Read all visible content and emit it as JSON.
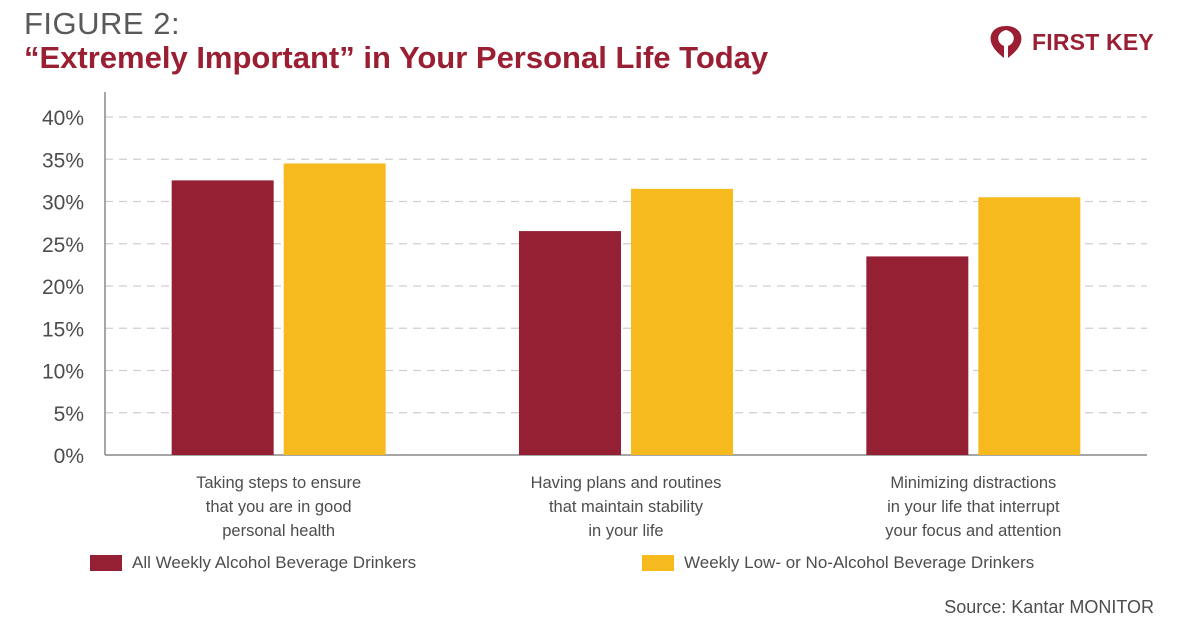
{
  "header": {
    "figure_label": "FIGURE 2:",
    "title": "“Extremely Important” in Your Personal Life Today"
  },
  "logo": {
    "text": "FIRST KEY",
    "icon": "first-key-logo-icon"
  },
  "colors": {
    "series1": "#952033",
    "series2": "#f6b91e",
    "title": "#9b1f33"
  },
  "chart_data": {
    "type": "bar",
    "ylim": [
      0,
      40
    ],
    "yticks": [
      "0%",
      "5%",
      "10%",
      "15%",
      "20%",
      "25%",
      "30%",
      "35%",
      "40%"
    ],
    "grid": true,
    "categories": [
      [
        "Taking steps to ensure",
        "that you are in good",
        "personal health"
      ],
      [
        "Having plans and routines",
        "that maintain stability",
        "in your life"
      ],
      [
        "Minimizing distractions",
        "in your life that interrupt",
        "your focus and attention"
      ]
    ],
    "series": [
      {
        "name": "All Weekly Alcohol Beverage Drinkers",
        "values": [
          32.5,
          26.5,
          23.5
        ]
      },
      {
        "name": "Weekly Low- or No-Alcohol Beverage Drinkers",
        "values": [
          34.5,
          31.5,
          30.5
        ]
      }
    ],
    "legend_position": "bottom"
  },
  "source": "Source: Kantar MONITOR"
}
